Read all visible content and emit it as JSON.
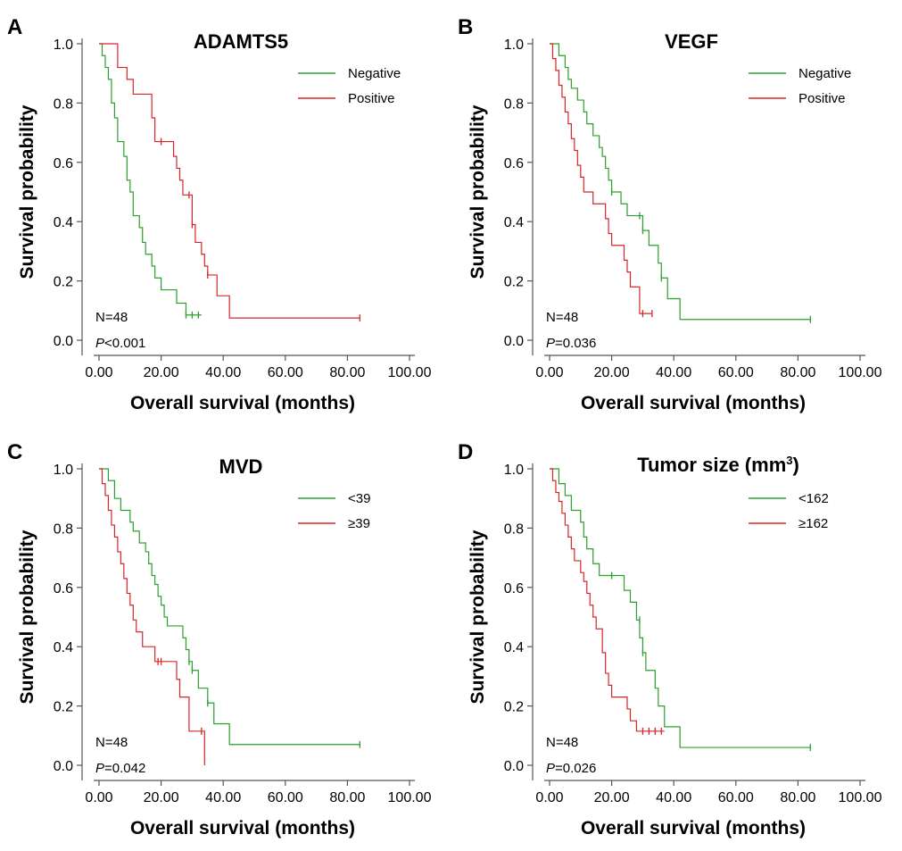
{
  "chart_data": [
    {
      "panel": "A",
      "type": "line",
      "title": "ADAMTS5",
      "xlabel": "Overall survival (months)",
      "ylabel": "Survival probability",
      "xlim": [
        0,
        100
      ],
      "ylim": [
        0,
        1
      ],
      "x_ticks": [
        "0.00",
        "20.00",
        "40.00",
        "60.00",
        "80.00",
        "100.00"
      ],
      "y_ticks": [
        "0.0",
        "0.2",
        "0.4",
        "0.6",
        "0.8",
        "1.0"
      ],
      "annotations": {
        "n": "N=48",
        "p_italic": "P",
        "p_rest": "<0.001"
      },
      "legend_position": "top-right",
      "series": [
        {
          "name": "Negative",
          "color": "#2ca02c",
          "steps": [
            [
              0,
              1.0
            ],
            [
              1,
              0.96
            ],
            [
              2,
              0.92
            ],
            [
              3,
              0.88
            ],
            [
              4,
              0.8
            ],
            [
              5,
              0.75
            ],
            [
              6,
              0.67
            ],
            [
              8,
              0.62
            ],
            [
              9,
              0.54
            ],
            [
              10,
              0.5
            ],
            [
              11,
              0.42
            ],
            [
              13,
              0.38
            ],
            [
              14,
              0.33
            ],
            [
              15,
              0.29
            ],
            [
              17,
              0.25
            ],
            [
              18,
              0.21
            ],
            [
              20,
              0.17
            ],
            [
              25,
              0.125
            ],
            [
              28,
              0.085
            ],
            [
              33,
              0.085
            ]
          ],
          "censored": [
            [
              28,
              0.085
            ],
            [
              30,
              0.085
            ],
            [
              32,
              0.085
            ]
          ]
        },
        {
          "name": "Positive",
          "color": "#d62728",
          "steps": [
            [
              0,
              1.0
            ],
            [
              6,
              0.92
            ],
            [
              9,
              0.88
            ],
            [
              11,
              0.83
            ],
            [
              17,
              0.75
            ],
            [
              18,
              0.67
            ],
            [
              24,
              0.62
            ],
            [
              25,
              0.58
            ],
            [
              26,
              0.54
            ],
            [
              27,
              0.49
            ],
            [
              30,
              0.39
            ],
            [
              31,
              0.33
            ],
            [
              33,
              0.29
            ],
            [
              34,
              0.25
            ],
            [
              35,
              0.22
            ],
            [
              38,
              0.15
            ],
            [
              42,
              0.075
            ],
            [
              84,
              0.075
            ]
          ],
          "censored": [
            [
              20,
              0.67
            ],
            [
              29,
              0.49
            ],
            [
              30,
              0.39
            ],
            [
              35,
              0.22
            ],
            [
              84,
              0.075
            ]
          ]
        }
      ]
    },
    {
      "panel": "B",
      "type": "line",
      "title": "VEGF",
      "xlabel": "Overall survival (months)",
      "ylabel": "Survival probability",
      "xlim": [
        0,
        100
      ],
      "ylim": [
        0,
        1
      ],
      "x_ticks": [
        "0.00",
        "20.00",
        "40.00",
        "60.00",
        "80.00",
        "100.00"
      ],
      "y_ticks": [
        "0.0",
        "0.2",
        "0.4",
        "0.6",
        "0.8",
        "1.0"
      ],
      "annotations": {
        "n": "N=48",
        "p_italic": "P",
        "p_rest": "=0.036"
      },
      "legend_position": "top-right",
      "series": [
        {
          "name": "Negative",
          "color": "#2ca02c",
          "steps": [
            [
              0,
              1.0
            ],
            [
              3,
              0.96
            ],
            [
              5,
              0.92
            ],
            [
              6,
              0.88
            ],
            [
              7,
              0.85
            ],
            [
              9,
              0.81
            ],
            [
              11,
              0.77
            ],
            [
              12,
              0.73
            ],
            [
              14,
              0.69
            ],
            [
              16,
              0.65
            ],
            [
              17,
              0.62
            ],
            [
              18,
              0.58
            ],
            [
              19,
              0.54
            ],
            [
              20,
              0.5
            ],
            [
              23,
              0.46
            ],
            [
              25,
              0.42
            ],
            [
              30,
              0.37
            ],
            [
              32,
              0.32
            ],
            [
              35,
              0.26
            ],
            [
              36,
              0.21
            ],
            [
              38,
              0.14
            ],
            [
              42,
              0.07
            ],
            [
              84,
              0.07
            ]
          ],
          "censored": [
            [
              20,
              0.5
            ],
            [
              29,
              0.42
            ],
            [
              30,
              0.37
            ],
            [
              36,
              0.21
            ],
            [
              84,
              0.07
            ]
          ]
        },
        {
          "name": "Positive",
          "color": "#d62728",
          "steps": [
            [
              0,
              1.0
            ],
            [
              1,
              0.95
            ],
            [
              2,
              0.91
            ],
            [
              3,
              0.86
            ],
            [
              4,
              0.82
            ],
            [
              5,
              0.77
            ],
            [
              6,
              0.73
            ],
            [
              7,
              0.68
            ],
            [
              8,
              0.64
            ],
            [
              9,
              0.59
            ],
            [
              10,
              0.55
            ],
            [
              11,
              0.5
            ],
            [
              14,
              0.46
            ],
            [
              18,
              0.41
            ],
            [
              19,
              0.36
            ],
            [
              20,
              0.32
            ],
            [
              24,
              0.27
            ],
            [
              25,
              0.23
            ],
            [
              26,
              0.18
            ],
            [
              29,
              0.09
            ],
            [
              33,
              0.09
            ]
          ],
          "censored": [
            [
              30,
              0.09
            ],
            [
              33,
              0.09
            ]
          ]
        }
      ]
    },
    {
      "panel": "C",
      "type": "line",
      "title": "MVD",
      "xlabel": "Overall survival (months)",
      "ylabel": "Survival probability",
      "xlim": [
        0,
        100
      ],
      "ylim": [
        0,
        1
      ],
      "x_ticks": [
        "0.00",
        "20.00",
        "40.00",
        "60.00",
        "80.00",
        "100.00"
      ],
      "y_ticks": [
        "0.0",
        "0.2",
        "0.4",
        "0.6",
        "0.8",
        "1.0"
      ],
      "annotations": {
        "n": "N=48",
        "p_italic": "P",
        "p_rest": "=0.042"
      },
      "legend_position": "top-right",
      "series": [
        {
          "name": "<39",
          "color": "#2ca02c",
          "steps": [
            [
              0,
              1.0
            ],
            [
              3,
              0.96
            ],
            [
              5,
              0.9
            ],
            [
              7,
              0.86
            ],
            [
              10,
              0.82
            ],
            [
              11,
              0.79
            ],
            [
              13,
              0.75
            ],
            [
              15,
              0.72
            ],
            [
              16,
              0.68
            ],
            [
              17,
              0.64
            ],
            [
              18,
              0.61
            ],
            [
              19,
              0.57
            ],
            [
              20,
              0.54
            ],
            [
              21,
              0.5
            ],
            [
              22,
              0.47
            ],
            [
              27,
              0.43
            ],
            [
              28,
              0.39
            ],
            [
              29,
              0.35
            ],
            [
              30,
              0.32
            ],
            [
              32,
              0.26
            ],
            [
              35,
              0.21
            ],
            [
              37,
              0.14
            ],
            [
              42,
              0.07
            ],
            [
              84,
              0.07
            ]
          ],
          "censored": [
            [
              29,
              0.35
            ],
            [
              30,
              0.32
            ],
            [
              35,
              0.21
            ],
            [
              84,
              0.07
            ]
          ]
        },
        {
          "name": "≥39",
          "color": "#d62728",
          "steps": [
            [
              0,
              1.0
            ],
            [
              1,
              0.95
            ],
            [
              2,
              0.91
            ],
            [
              3,
              0.86
            ],
            [
              4,
              0.81
            ],
            [
              5,
              0.77
            ],
            [
              6,
              0.72
            ],
            [
              7,
              0.68
            ],
            [
              8,
              0.63
            ],
            [
              9,
              0.58
            ],
            [
              10,
              0.54
            ],
            [
              11,
              0.49
            ],
            [
              12,
              0.45
            ],
            [
              14,
              0.4
            ],
            [
              18,
              0.35
            ],
            [
              22,
              0.35
            ],
            [
              25,
              0.29
            ],
            [
              26,
              0.23
            ],
            [
              29,
              0.115
            ],
            [
              33,
              0.115
            ],
            [
              34,
              0.0
            ]
          ],
          "censored": [
            [
              19,
              0.35
            ],
            [
              20,
              0.35
            ],
            [
              33,
              0.115
            ]
          ]
        }
      ]
    },
    {
      "panel": "D",
      "type": "line",
      "title_main": "Tumor size (mm",
      "title_sup": "3",
      "title_end": ")",
      "xlabel": "Overall survival (months)",
      "ylabel": "Survival probability",
      "xlim": [
        0,
        100
      ],
      "ylim": [
        0,
        1
      ],
      "x_ticks": [
        "0.00",
        "20.00",
        "40.00",
        "60.00",
        "80.00",
        "100.00"
      ],
      "y_ticks": [
        "0.0",
        "0.2",
        "0.4",
        "0.6",
        "0.8",
        "1.0"
      ],
      "annotations": {
        "n": "N=48",
        "p_italic": "P",
        "p_rest": "=0.026"
      },
      "legend_position": "top-right",
      "series": [
        {
          "name": "<162",
          "color": "#2ca02c",
          "steps": [
            [
              0,
              1.0
            ],
            [
              3,
              0.95
            ],
            [
              5,
              0.91
            ],
            [
              7,
              0.86
            ],
            [
              10,
              0.82
            ],
            [
              11,
              0.77
            ],
            [
              12,
              0.73
            ],
            [
              14,
              0.68
            ],
            [
              16,
              0.64
            ],
            [
              22,
              0.64
            ],
            [
              24,
              0.59
            ],
            [
              26,
              0.55
            ],
            [
              28,
              0.49
            ],
            [
              29,
              0.43
            ],
            [
              30,
              0.38
            ],
            [
              31,
              0.32
            ],
            [
              34,
              0.26
            ],
            [
              35,
              0.2
            ],
            [
              37,
              0.13
            ],
            [
              42,
              0.06
            ],
            [
              84,
              0.06
            ]
          ],
          "censored": [
            [
              20,
              0.64
            ],
            [
              29,
              0.49
            ],
            [
              30,
              0.38
            ],
            [
              84,
              0.06
            ]
          ]
        },
        {
          "name": "≥162",
          "color": "#d62728",
          "steps": [
            [
              0,
              1.0
            ],
            [
              1,
              0.96
            ],
            [
              2,
              0.92
            ],
            [
              3,
              0.89
            ],
            [
              4,
              0.85
            ],
            [
              5,
              0.81
            ],
            [
              6,
              0.77
            ],
            [
              7,
              0.73
            ],
            [
              8,
              0.69
            ],
            [
              10,
              0.65
            ],
            [
              11,
              0.62
            ],
            [
              12,
              0.58
            ],
            [
              13,
              0.54
            ],
            [
              14,
              0.5
            ],
            [
              15,
              0.46
            ],
            [
              17,
              0.38
            ],
            [
              18,
              0.31
            ],
            [
              19,
              0.27
            ],
            [
              20,
              0.23
            ],
            [
              25,
              0.19
            ],
            [
              26,
              0.15
            ],
            [
              28,
              0.115
            ],
            [
              37,
              0.115
            ]
          ],
          "censored": [
            [
              30,
              0.115
            ],
            [
              32,
              0.115
            ],
            [
              34,
              0.115
            ],
            [
              36,
              0.115
            ]
          ]
        }
      ]
    }
  ]
}
